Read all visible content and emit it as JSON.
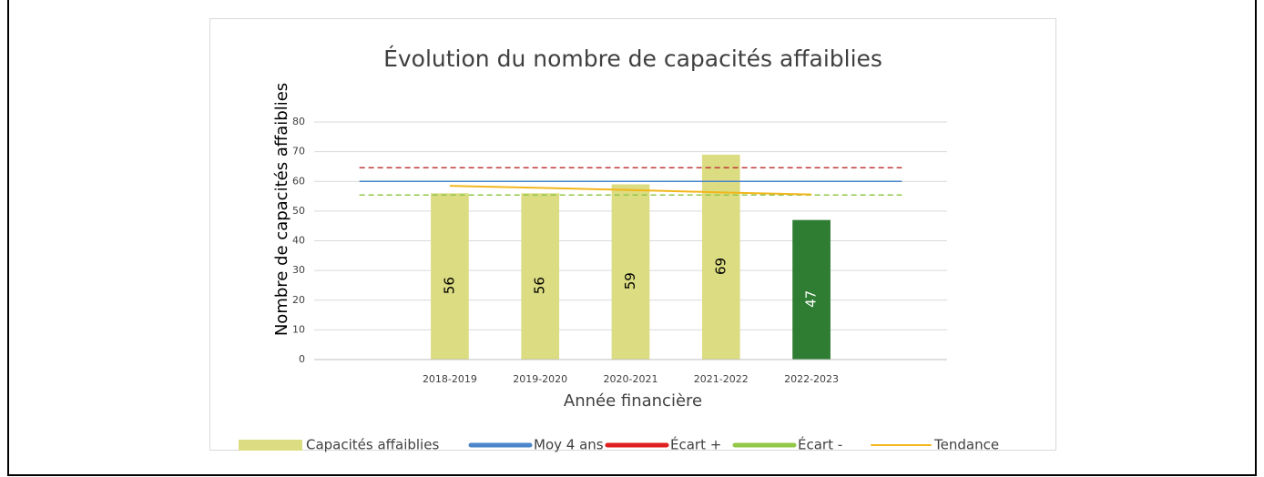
{
  "chart_data": {
    "type": "bar",
    "title": "Évolution du nombre de capacités affaiblies",
    "x_label": "Année financière",
    "y_label": "Nombre de capacités affaiblies",
    "categories": [
      null,
      "2018-2019",
      "2019-2020",
      "2020-2021",
      "2021-2022",
      "2022-2023",
      null
    ],
    "series": [
      {
        "name": "Capacités affaiblies",
        "style": "bar",
        "colors": [
          null,
          "#dcdc82",
          "#dcdc82",
          "#dcdc82",
          "#dcdc82",
          "#2e7d32",
          null
        ],
        "color": "#dcdc82",
        "values": [
          null,
          56,
          56,
          59,
          69,
          47,
          null
        ]
      },
      {
        "name": "Moy 4 ans",
        "style": "line",
        "color": "#4a86c8",
        "values": [
          60,
          60,
          60,
          60,
          60,
          60,
          60
        ]
      },
      {
        "name": "Écart +",
        "style": "dashed",
        "color": "#c0393b",
        "legend_color": "#e02020",
        "values": [
          64.6,
          64.6,
          64.6,
          64.6,
          64.6,
          64.6,
          64.6
        ]
      },
      {
        "name": "Écart -",
        "style": "dashed",
        "color": "#92c84a",
        "values": [
          55.4,
          55.4,
          55.4,
          55.4,
          55.4,
          55.4,
          55.4
        ]
      },
      {
        "name": "Tendance",
        "style": "thin",
        "color": "#f2b61c",
        "values": [
          null,
          58.5,
          57.8,
          57.1,
          56.3,
          55.6,
          null
        ]
      }
    ],
    "ylim": [
      0,
      80
    ],
    "yticks": [
      0,
      10,
      20,
      30,
      40,
      50,
      60,
      70,
      80
    ],
    "grid": true,
    "legend": "bottom"
  }
}
